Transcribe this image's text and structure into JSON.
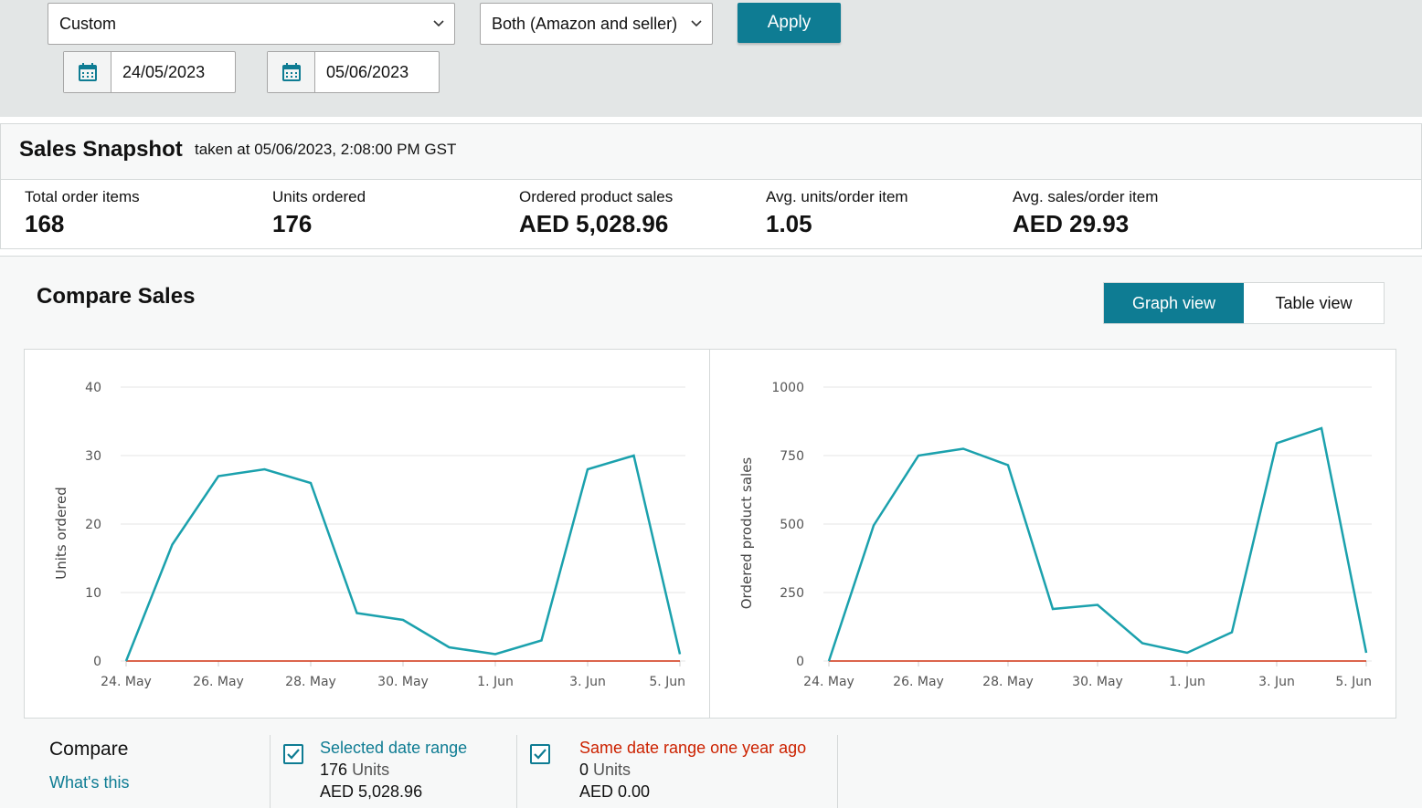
{
  "filters": {
    "date_range_select": "Custom",
    "fulfillment_select": "Both (Amazon and seller)",
    "apply_label": "Apply",
    "date_from": "24/05/2023",
    "date_to": "05/06/2023"
  },
  "snapshot": {
    "title": "Sales Snapshot",
    "taken_at": "taken at 05/06/2023, 2:08:00 PM GST",
    "metrics": [
      {
        "label": "Total order items",
        "value": "168"
      },
      {
        "label": "Units ordered",
        "value": "176"
      },
      {
        "label": "Ordered product sales",
        "value": "AED 5,028.96"
      },
      {
        "label": "Avg. units/order item",
        "value": "1.05"
      },
      {
        "label": "Avg. sales/order item",
        "value": "AED 29.93"
      }
    ]
  },
  "compare": {
    "title": "Compare Sales",
    "graph_view_label": "Graph view",
    "table_view_label": "Table view",
    "compare_label": "Compare",
    "whats_this": "What's this",
    "selected": {
      "title": "Selected date range",
      "units_value": "176",
      "units_word": "Units",
      "sales": "AED 5,028.96"
    },
    "last_year": {
      "title": "Same date range one year ago",
      "units_value": "0",
      "units_word": "Units",
      "sales": "AED 0.00"
    }
  },
  "colors": {
    "accent": "#0e7c93",
    "series_current": "#1ba1ad",
    "series_last_year": "#d13212"
  },
  "chart_data": [
    {
      "type": "line",
      "ylabel": "Units ordered",
      "xlabel": "",
      "x": [
        "24. May",
        "25. May",
        "26. May",
        "27. May",
        "28. May",
        "29. May",
        "30. May",
        "31. May",
        "1. Jun",
        "2. Jun",
        "3. Jun",
        "4. Jun",
        "5. Jun"
      ],
      "xticks": [
        "24. May",
        "26. May",
        "28. May",
        "30. May",
        "1. Jun",
        "3. Jun",
        "5. Jun"
      ],
      "yticks": [
        0,
        10,
        20,
        30,
        40
      ],
      "ylim": [
        0,
        40
      ],
      "grid": true,
      "series": [
        {
          "values": [
            0,
            17,
            27,
            28,
            26,
            7,
            6,
            2,
            1,
            3,
            28,
            30,
            1
          ]
        },
        {
          "values": [
            0,
            0,
            0,
            0,
            0,
            0,
            0,
            0,
            0,
            0,
            0,
            0,
            0
          ]
        }
      ]
    },
    {
      "type": "line",
      "ylabel": "Ordered product sales",
      "xlabel": "",
      "x": [
        "24. May",
        "25. May",
        "26. May",
        "27. May",
        "28. May",
        "29. May",
        "30. May",
        "31. May",
        "1. Jun",
        "2. Jun",
        "3. Jun",
        "4. Jun",
        "5. Jun"
      ],
      "xticks": [
        "24. May",
        "26. May",
        "28. May",
        "30. May",
        "1. Jun",
        "3. Jun",
        "5. Jun"
      ],
      "yticks": [
        0,
        250,
        500,
        750,
        1000
      ],
      "ylim": [
        0,
        1000
      ],
      "grid": true,
      "series": [
        {
          "values": [
            0,
            495,
            750,
            775,
            715,
            190,
            205,
            65,
            30,
            105,
            795,
            850,
            30
          ]
        },
        {
          "values": [
            0,
            0,
            0,
            0,
            0,
            0,
            0,
            0,
            0,
            0,
            0,
            0,
            0
          ]
        }
      ]
    }
  ]
}
